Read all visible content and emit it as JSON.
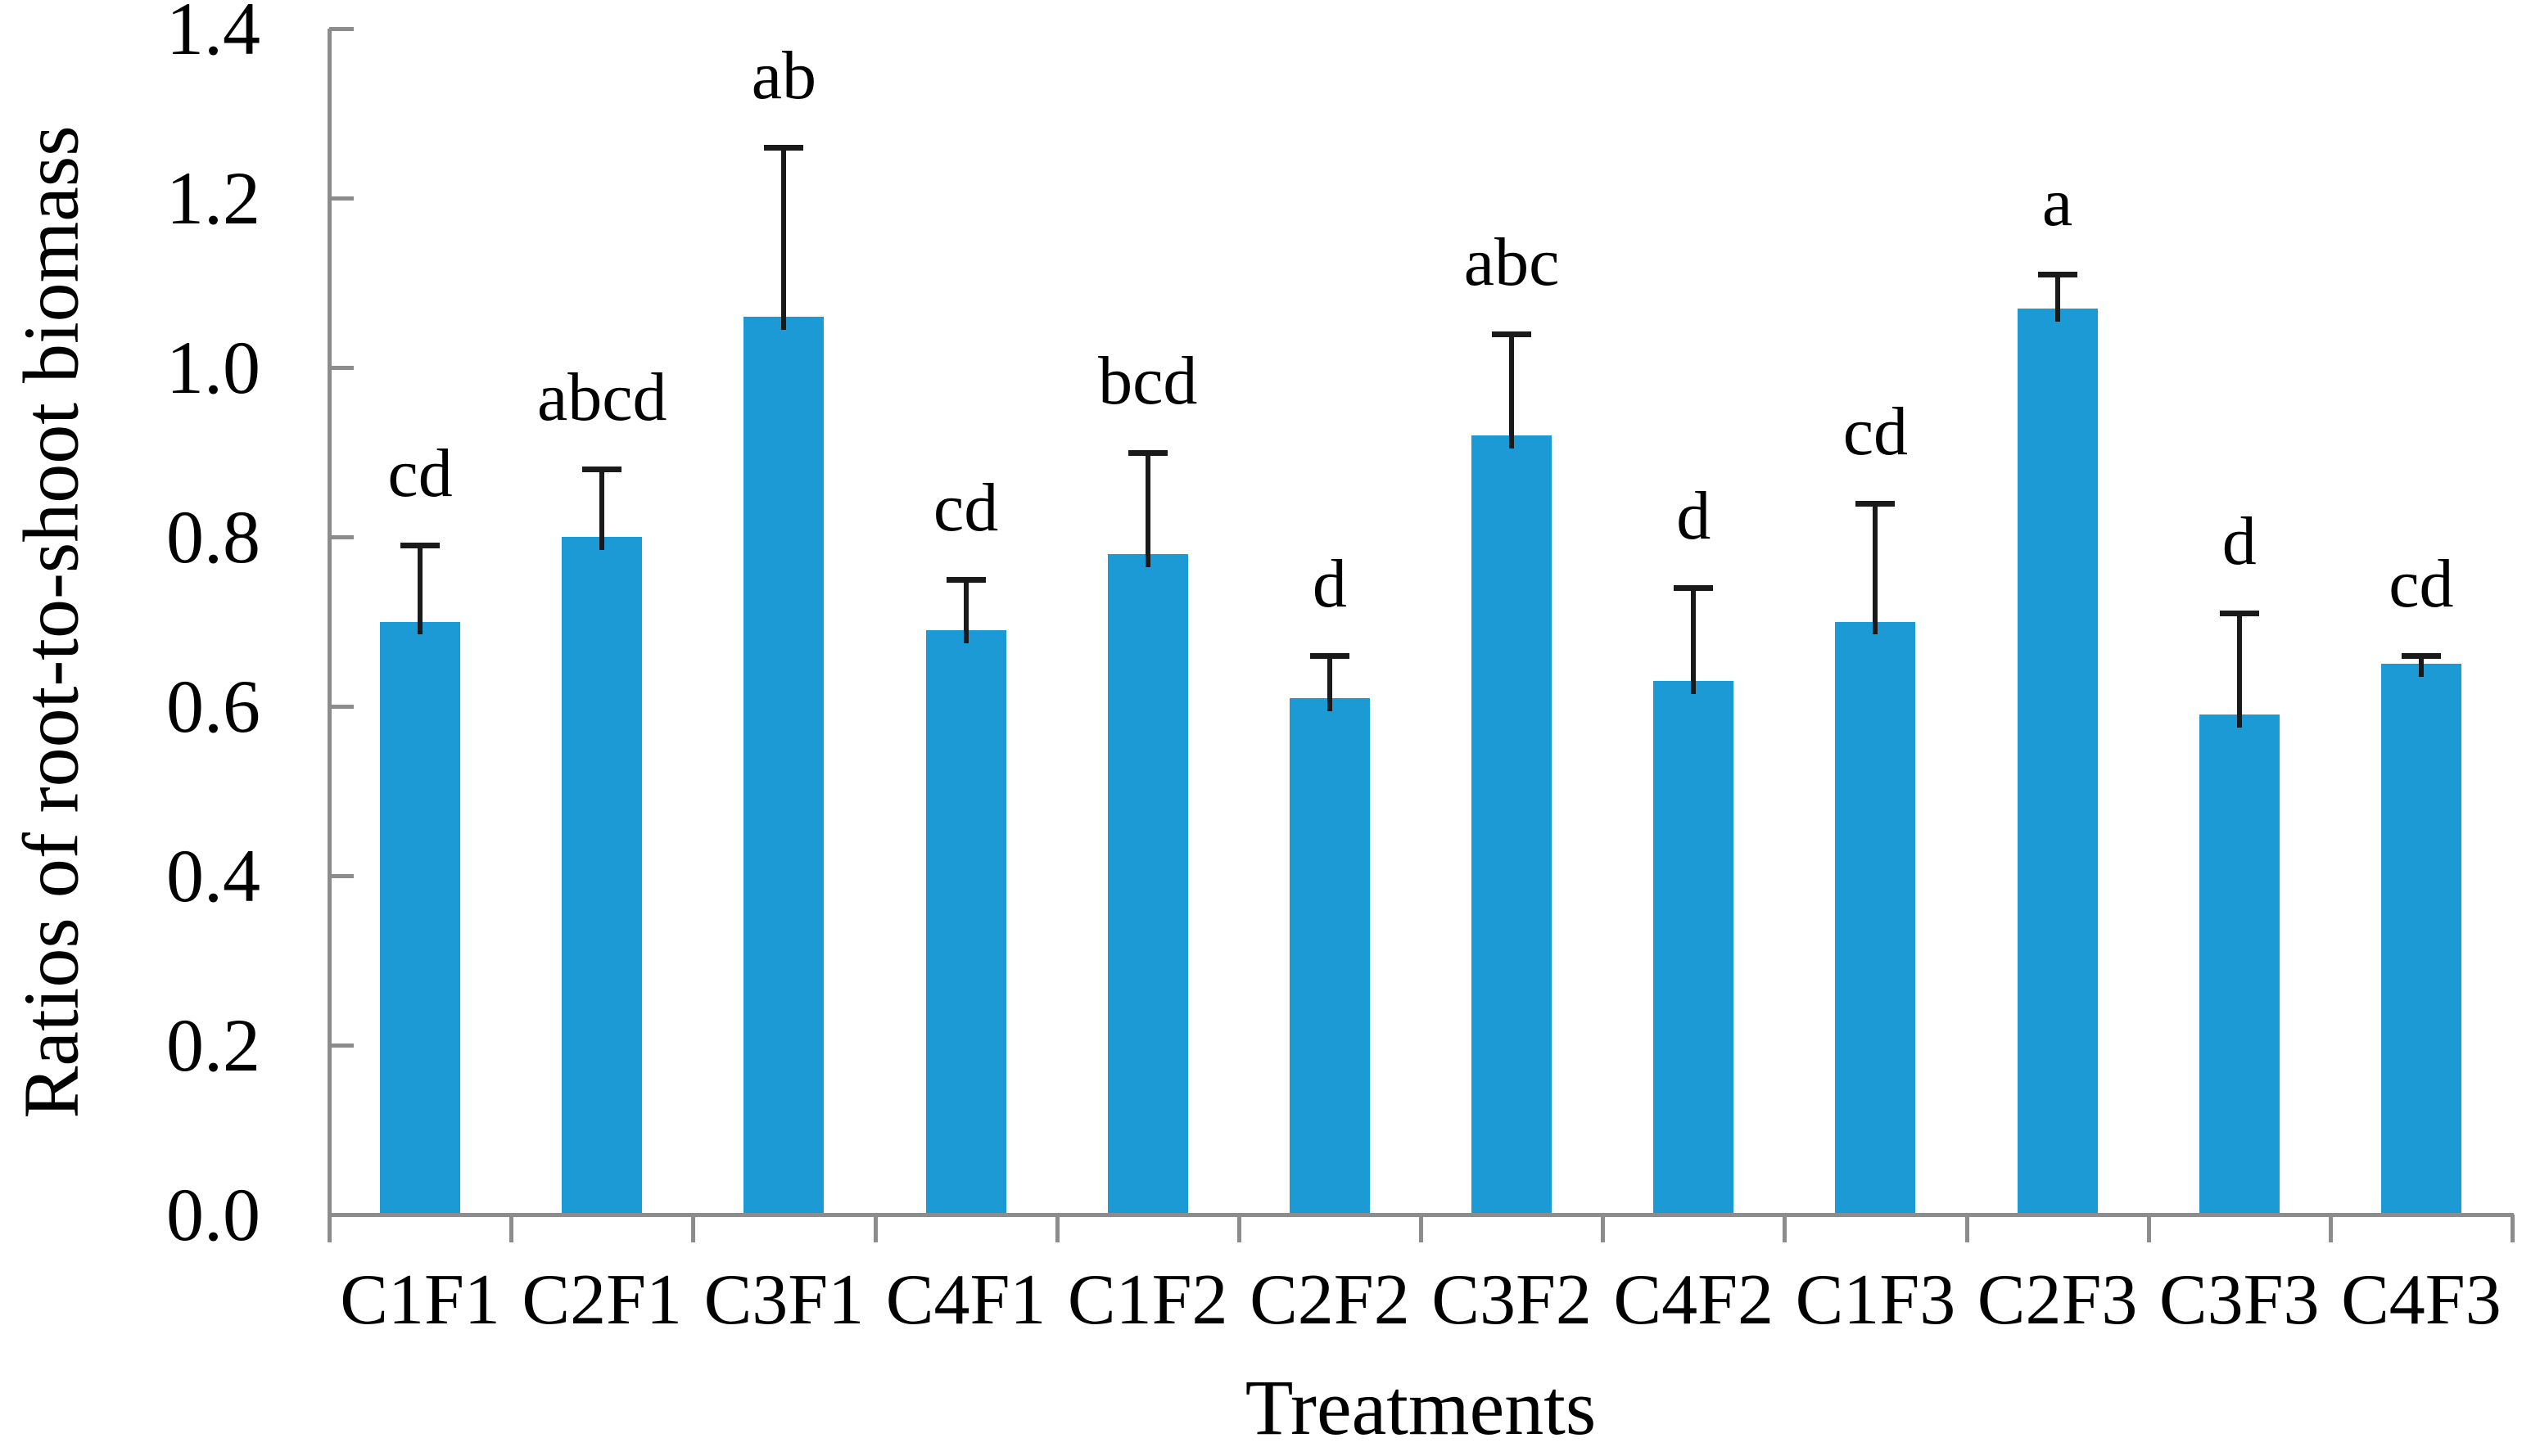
{
  "figure": {
    "kind": "bar-chart-figure"
  },
  "chart_data": {
    "type": "bar",
    "title": "",
    "xlabel": "Treatments",
    "ylabel": "Ratios of root-to-shoot biomass",
    "categories": [
      "C1F1",
      "C2F1",
      "C3F1",
      "C4F1",
      "C1F2",
      "C2F2",
      "C3F2",
      "C4F2",
      "C1F3",
      "C2F3",
      "C3F3",
      "C4F3"
    ],
    "values": [
      0.7,
      0.8,
      1.06,
      0.69,
      0.78,
      0.61,
      0.92,
      0.63,
      0.7,
      1.07,
      0.59,
      0.65
    ],
    "errors_up": [
      0.09,
      0.08,
      0.2,
      0.06,
      0.12,
      0.05,
      0.12,
      0.11,
      0.14,
      0.04,
      0.12,
      0.01
    ],
    "sig_letters": [
      "cd",
      "abcd",
      "ab",
      "cd",
      "bcd",
      "d",
      "abc",
      "d",
      "cd",
      "a",
      "d",
      "cd"
    ],
    "ylim": [
      0.0,
      1.4
    ],
    "ytick_interval": 0.2,
    "ytick_labels": [
      "0.0",
      "0.2",
      "0.4",
      "0.6",
      "0.8",
      "1.0",
      "1.2",
      "1.4"
    ],
    "grid": false,
    "legend": false,
    "error_bars": "upper only, with caps",
    "bar_color": "#1b9ad6",
    "axis_color": "#8c8c8c",
    "error_bar_color": "#1a1a1a",
    "text_color": "#000000"
  }
}
